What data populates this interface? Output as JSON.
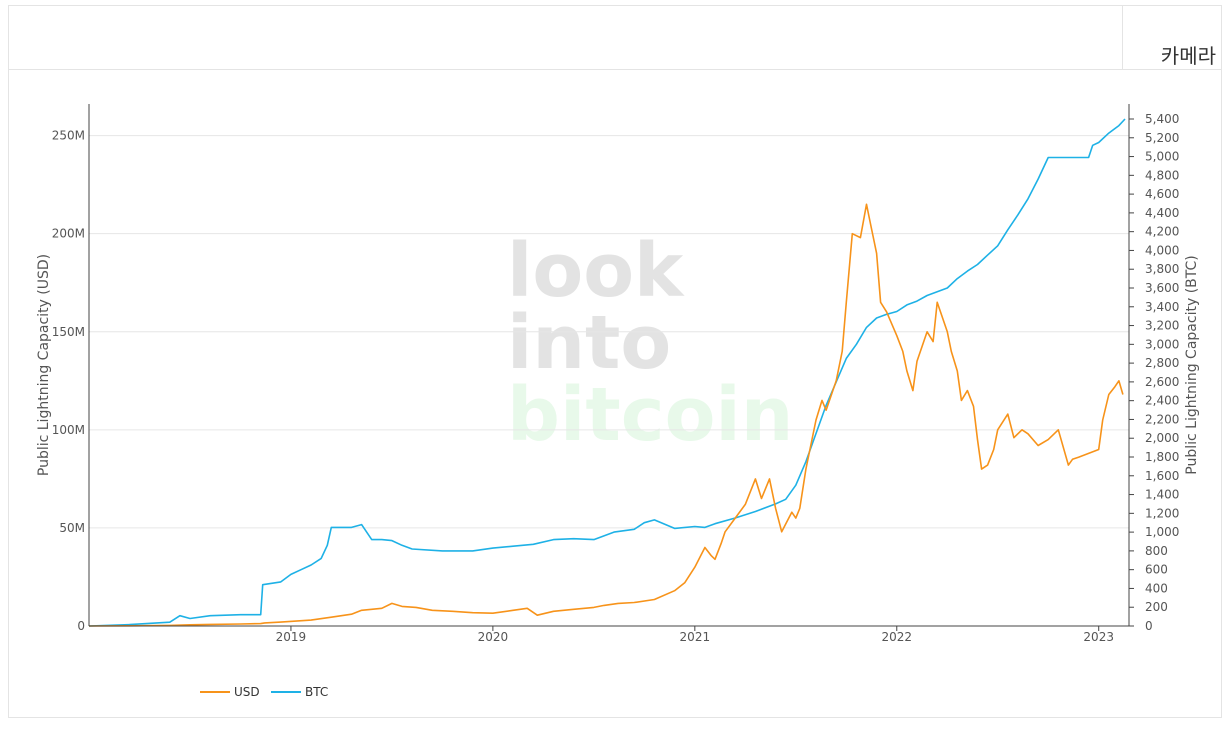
{
  "toolbar": {
    "camera_label": "카메라"
  },
  "watermark": {
    "line1": "look",
    "line2": "into",
    "line3": "bitcoin"
  },
  "colors": {
    "usd": "#f7931a",
    "btc": "#1eb1e6",
    "grid": "#e6e6e6",
    "axis": "#444444",
    "watermark_gray": "#e3e3e3",
    "watermark_green": "#e8f9ea"
  },
  "chart_data": {
    "type": "line",
    "title": "",
    "xlabel": "",
    "ylabel": "Public Lightning Capacity (USD)",
    "y2label": "Public Lightning Capacity (BTC)",
    "xlim": [
      2018.0,
      2023.15
    ],
    "ylim": [
      0,
      255000000
    ],
    "y2lim": [
      0,
      5440
    ],
    "x_ticks": [
      2019,
      2020,
      2021,
      2022,
      2023
    ],
    "x_tick_labels": [
      "2019",
      "2020",
      "2021",
      "2022",
      "2023"
    ],
    "y_ticks": [
      0,
      50000000,
      100000000,
      150000000,
      200000000,
      250000000
    ],
    "y_tick_labels": [
      "0",
      "50M",
      "100M",
      "150M",
      "200M",
      "250M"
    ],
    "y2_ticks": [
      0,
      200,
      400,
      600,
      800,
      1000,
      1200,
      1400,
      1600,
      1800,
      2000,
      2200,
      2400,
      2600,
      2800,
      3000,
      3200,
      3400,
      3600,
      3800,
      4000,
      4200,
      4400,
      4600,
      4800,
      5000,
      5200,
      5400
    ],
    "y2_tick_labels": [
      "0",
      "200",
      "400",
      "600",
      "800",
      "1,000",
      "1,200",
      "1,400",
      "1,600",
      "1,800",
      "2,000",
      "2,200",
      "2,400",
      "2,600",
      "2,800",
      "3,000",
      "3,200",
      "3,400",
      "3,600",
      "3,800",
      "4,000",
      "4,200",
      "4,400",
      "4,600",
      "4,800",
      "5,000",
      "5,200",
      "5,400"
    ],
    "grid": true,
    "legend_position": "bottom-left",
    "series": [
      {
        "name": "USD",
        "axis": "left",
        "x": [
          2018.0,
          2018.2,
          2018.4,
          2018.5,
          2018.6,
          2018.75,
          2018.85,
          2018.87,
          2018.95,
          2019.1,
          2019.2,
          2019.3,
          2019.35,
          2019.45,
          2019.5,
          2019.55,
          2019.62,
          2019.7,
          2019.8,
          2019.9,
          2020.0,
          2020.1,
          2020.17,
          2020.22,
          2020.3,
          2020.4,
          2020.5,
          2020.55,
          2020.62,
          2020.7,
          2020.8,
          2020.9,
          2020.95,
          2021.0,
          2021.05,
          2021.08,
          2021.1,
          2021.13,
          2021.15,
          2021.2,
          2021.25,
          2021.3,
          2021.33,
          2021.37,
          2021.4,
          2021.43,
          2021.45,
          2021.48,
          2021.5,
          2021.52,
          2021.55,
          2021.6,
          2021.63,
          2021.65,
          2021.7,
          2021.73,
          2021.75,
          2021.78,
          2021.82,
          2021.85,
          2021.87,
          2021.9,
          2021.92,
          2021.95,
          2022.0,
          2022.03,
          2022.05,
          2022.08,
          2022.1,
          2022.15,
          2022.18,
          2022.2,
          2022.25,
          2022.27,
          2022.3,
          2022.32,
          2022.35,
          2022.38,
          2022.4,
          2022.42,
          2022.45,
          2022.48,
          2022.5,
          2022.55,
          2022.58,
          2022.62,
          2022.65,
          2022.7,
          2022.75,
          2022.8,
          2022.85,
          2022.87,
          2022.9,
          2022.95,
          2023.0,
          2023.02,
          2023.05,
          2023.08,
          2023.1,
          2023.12
        ],
        "values": [
          0,
          0.1,
          0.3,
          0.6,
          0.8,
          1.0,
          1.2,
          1.6,
          2.0,
          3.0,
          4.5,
          6.0,
          8.0,
          9.0,
          11.5,
          10.0,
          9.5,
          8.0,
          7.5,
          6.8,
          6.5,
          8.0,
          9.0,
          5.5,
          7.5,
          8.5,
          9.5,
          10.5,
          11.5,
          12.0,
          13.5,
          18.0,
          22.0,
          30.0,
          40.0,
          36.0,
          34.0,
          42.0,
          48.0,
          55.0,
          62.0,
          75.0,
          65.0,
          75.0,
          60.0,
          48.0,
          52.0,
          58.0,
          55.0,
          60.0,
          80.0,
          105.0,
          115.0,
          110.0,
          125.0,
          140.0,
          165.0,
          200.0,
          198.0,
          215.0,
          205.0,
          190.0,
          165.0,
          160.0,
          148.0,
          140.0,
          130.0,
          120.0,
          135.0,
          150.0,
          145.0,
          165.0,
          150.0,
          140.0,
          130.0,
          115.0,
          120.0,
          112.0,
          95.0,
          80.0,
          82.0,
          90.0,
          100.0,
          108.0,
          96.0,
          100.0,
          98.0,
          92.0,
          95.0,
          100.0,
          82.0,
          85.0,
          86.0,
          88.0,
          90.0,
          105.0,
          118.0,
          122.0,
          125.0,
          118.0
        ],
        "values_unit": "M USD"
      },
      {
        "name": "BTC",
        "axis": "right",
        "x": [
          2018.0,
          2018.2,
          2018.4,
          2018.45,
          2018.5,
          2018.6,
          2018.75,
          2018.85,
          2018.86,
          2018.95,
          2019.0,
          2019.05,
          2019.1,
          2019.15,
          2019.18,
          2019.2,
          2019.3,
          2019.35,
          2019.4,
          2019.45,
          2019.5,
          2019.55,
          2019.6,
          2019.75,
          2019.9,
          2020.0,
          2020.1,
          2020.2,
          2020.3,
          2020.4,
          2020.5,
          2020.6,
          2020.7,
          2020.75,
          2020.8,
          2020.9,
          2021.0,
          2021.05,
          2021.1,
          2021.2,
          2021.3,
          2021.4,
          2021.45,
          2021.5,
          2021.55,
          2021.6,
          2021.65,
          2021.7,
          2021.75,
          2021.8,
          2021.85,
          2021.9,
          2021.95,
          2022.0,
          2022.05,
          2022.1,
          2022.15,
          2022.2,
          2022.25,
          2022.3,
          2022.35,
          2022.4,
          2022.45,
          2022.5,
          2022.55,
          2022.6,
          2022.65,
          2022.7,
          2022.75,
          2022.8,
          2022.9,
          2022.95,
          2022.97,
          2023.0,
          2023.05,
          2023.1,
          2023.13
        ],
        "values": [
          0,
          15,
          40,
          110,
          80,
          110,
          120,
          120,
          440,
          470,
          550,
          600,
          650,
          720,
          860,
          1050,
          1050,
          1080,
          920,
          920,
          910,
          860,
          820,
          800,
          800,
          830,
          850,
          870,
          920,
          930,
          920,
          1000,
          1030,
          1100,
          1130,
          1040,
          1060,
          1050,
          1090,
          1150,
          1220,
          1300,
          1350,
          1500,
          1750,
          2050,
          2350,
          2600,
          2850,
          3000,
          3180,
          3280,
          3320,
          3350,
          3420,
          3460,
          3520,
          3560,
          3600,
          3700,
          3780,
          3850,
          3950,
          4050,
          4220,
          4380,
          4550,
          4760,
          4990,
          4990,
          4990,
          4990,
          5120,
          5150,
          5250,
          5330,
          5400
        ],
        "values_unit": "BTC"
      }
    ]
  }
}
